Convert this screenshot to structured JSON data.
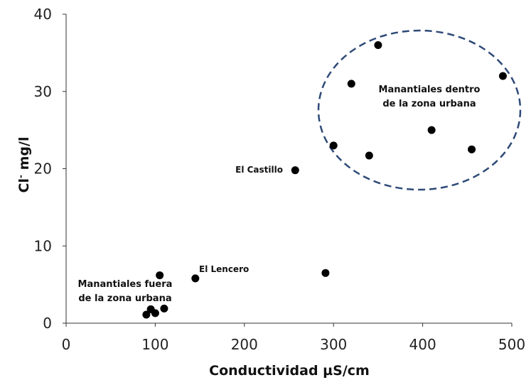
{
  "chart_data": {
    "type": "scatter",
    "title": "",
    "xlabel": "Conductividad µS/cm",
    "ylabel_main": "Cl",
    "ylabel_sup": "-",
    "ylabel_rest": " mg/l",
    "xlim": [
      0,
      500
    ],
    "ylim": [
      0,
      40
    ],
    "xticks": [
      "0",
      "100",
      "200",
      "300",
      "400",
      "500"
    ],
    "yticks": [
      "0",
      "10",
      "20",
      "30",
      "40"
    ],
    "grid": false,
    "points": [
      {
        "x": 90,
        "y": 1.1
      },
      {
        "x": 95,
        "y": 1.8
      },
      {
        "x": 100,
        "y": 1.3
      },
      {
        "x": 105,
        "y": 6.2
      },
      {
        "x": 110,
        "y": 1.9
      },
      {
        "x": 145,
        "y": 5.8
      },
      {
        "x": 257,
        "y": 19.8
      },
      {
        "x": 291,
        "y": 6.5
      },
      {
        "x": 300,
        "y": 23.0
      },
      {
        "x": 320,
        "y": 31.0
      },
      {
        "x": 340,
        "y": 21.7
      },
      {
        "x": 350,
        "y": 36.0
      },
      {
        "x": 410,
        "y": 25.0
      },
      {
        "x": 455,
        "y": 22.5
      },
      {
        "x": 490,
        "y": 32.0
      }
    ],
    "annotations": {
      "el_castillo": "El Castillo",
      "el_lencero": "El Lencero",
      "urban_line1": "Manantiales dentro",
      "urban_line2": "de la zona urbana",
      "outside_line1": "Manantiales fuera",
      "outside_line2": "de la zona urbana"
    },
    "highlight_ellipse": {
      "style": "dashed",
      "color": "#2e4a78"
    },
    "marker_color": "#000000"
  }
}
